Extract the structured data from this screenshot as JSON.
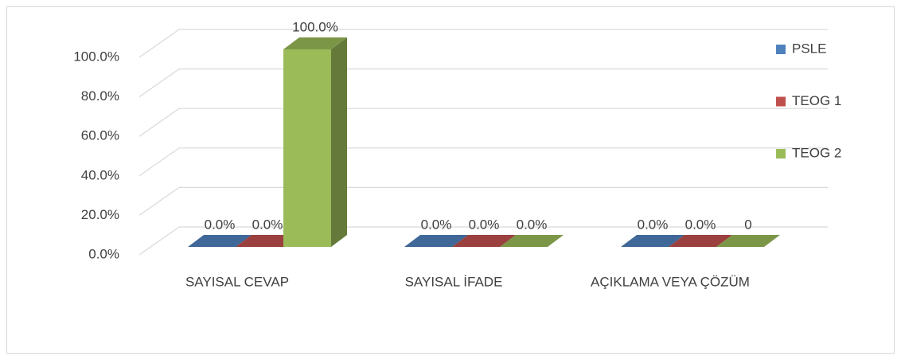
{
  "chart_data": {
    "type": "bar3d",
    "categories": [
      "SAYISAL CEVAP",
      "SAYISAL İFADE",
      "AÇIKLAMA VEYA ÇÖZÜM"
    ],
    "series": [
      {
        "name": "PSLE",
        "color": "#4f81bd",
        "values": [
          0,
          0,
          0
        ],
        "value_labels": [
          "0.0%",
          "0.0%",
          "0.0%"
        ]
      },
      {
        "name": "TEOG 1",
        "color": "#c0504d",
        "values": [
          0,
          0,
          0
        ],
        "value_labels": [
          "0.0%",
          "0.0%",
          "0.0%"
        ]
      },
      {
        "name": "TEOG 2",
        "color": "#9bbb59",
        "values": [
          100,
          0,
          0
        ],
        "value_labels": [
          "100.0%",
          "0.0%",
          "0"
        ]
      }
    ],
    "ylim": [
      0,
      100
    ],
    "yticks": [
      {
        "value": 0,
        "label": "0.0%"
      },
      {
        "value": 20,
        "label": "20.0%"
      },
      {
        "value": 40,
        "label": "40.0%"
      },
      {
        "value": 60,
        "label": "60.0%"
      },
      {
        "value": 80,
        "label": "80.0%"
      },
      {
        "value": 100,
        "label": "100.0%"
      }
    ],
    "grid": true,
    "legend": "right"
  }
}
